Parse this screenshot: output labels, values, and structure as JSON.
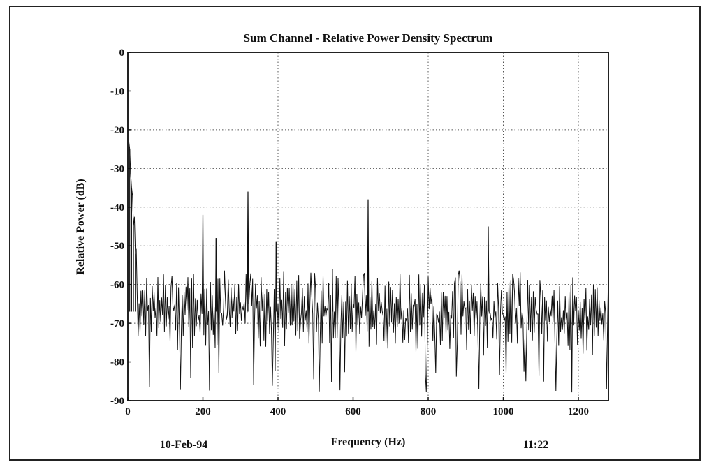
{
  "chart_data": {
    "type": "line",
    "title": "Sum Channel - Relative Power Density Spectrum",
    "xlabel": "Frequency (Hz)",
    "ylabel": "Relative Power (dB)",
    "xlim": [
      0,
      1280
    ],
    "ylim": [
      -90,
      0
    ],
    "x_ticks": [
      0,
      200,
      400,
      600,
      800,
      1000,
      1200
    ],
    "x_tick_labels": [
      "0",
      "200",
      "400",
      "600",
      "800",
      "1000",
      "1200"
    ],
    "y_ticks": [
      0,
      -10,
      -20,
      -30,
      -40,
      -50,
      -60,
      -70,
      -80,
      -90
    ],
    "y_tick_labels": [
      "0",
      "-10",
      "-20",
      "-30",
      "-40",
      "-50",
      "-60",
      "-70",
      "-80",
      "-90"
    ],
    "grid": true,
    "noise_floor_db": -67,
    "noise_range_db": [
      -90,
      -56
    ],
    "peaks": [
      {
        "x": 0,
        "y": -18
      },
      {
        "x": 5,
        "y": -25
      },
      {
        "x": 10,
        "y": -35
      },
      {
        "x": 15,
        "y": -45
      },
      {
        "x": 20,
        "y": -52
      },
      {
        "x": 200,
        "y": -42
      },
      {
        "x": 235,
        "y": -48
      },
      {
        "x": 320,
        "y": -36
      },
      {
        "x": 395,
        "y": -49
      },
      {
        "x": 545,
        "y": -56
      },
      {
        "x": 640,
        "y": -38
      },
      {
        "x": 960,
        "y": -45
      }
    ]
  },
  "footer": {
    "date": "10-Feb-94",
    "time": "11:22"
  },
  "colors": {
    "trace": "#111111",
    "grid": "#555555",
    "frame": "#222222"
  }
}
